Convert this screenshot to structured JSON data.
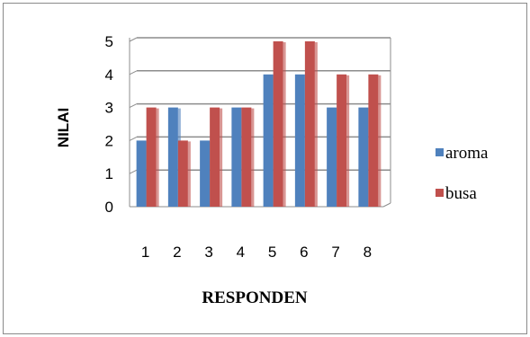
{
  "chart_data": {
    "type": "bar",
    "categories": [
      "1",
      "2",
      "3",
      "4",
      "5",
      "6",
      "7",
      "8"
    ],
    "series": [
      {
        "name": "aroma",
        "color": "#4f81bd",
        "values": [
          2,
          3,
          2,
          3,
          4,
          4,
          3,
          3
        ]
      },
      {
        "name": "busa",
        "color": "#c0504d",
        "values": [
          3,
          2,
          3,
          3,
          5,
          5,
          4,
          4
        ]
      }
    ],
    "xlabel": "RESPONDEN",
    "ylabel": "NILAI",
    "ylim": [
      0,
      5
    ],
    "yticks": [
      "0",
      "1",
      "2",
      "3",
      "4",
      "5"
    ],
    "grid": true,
    "legend_position": "right"
  }
}
